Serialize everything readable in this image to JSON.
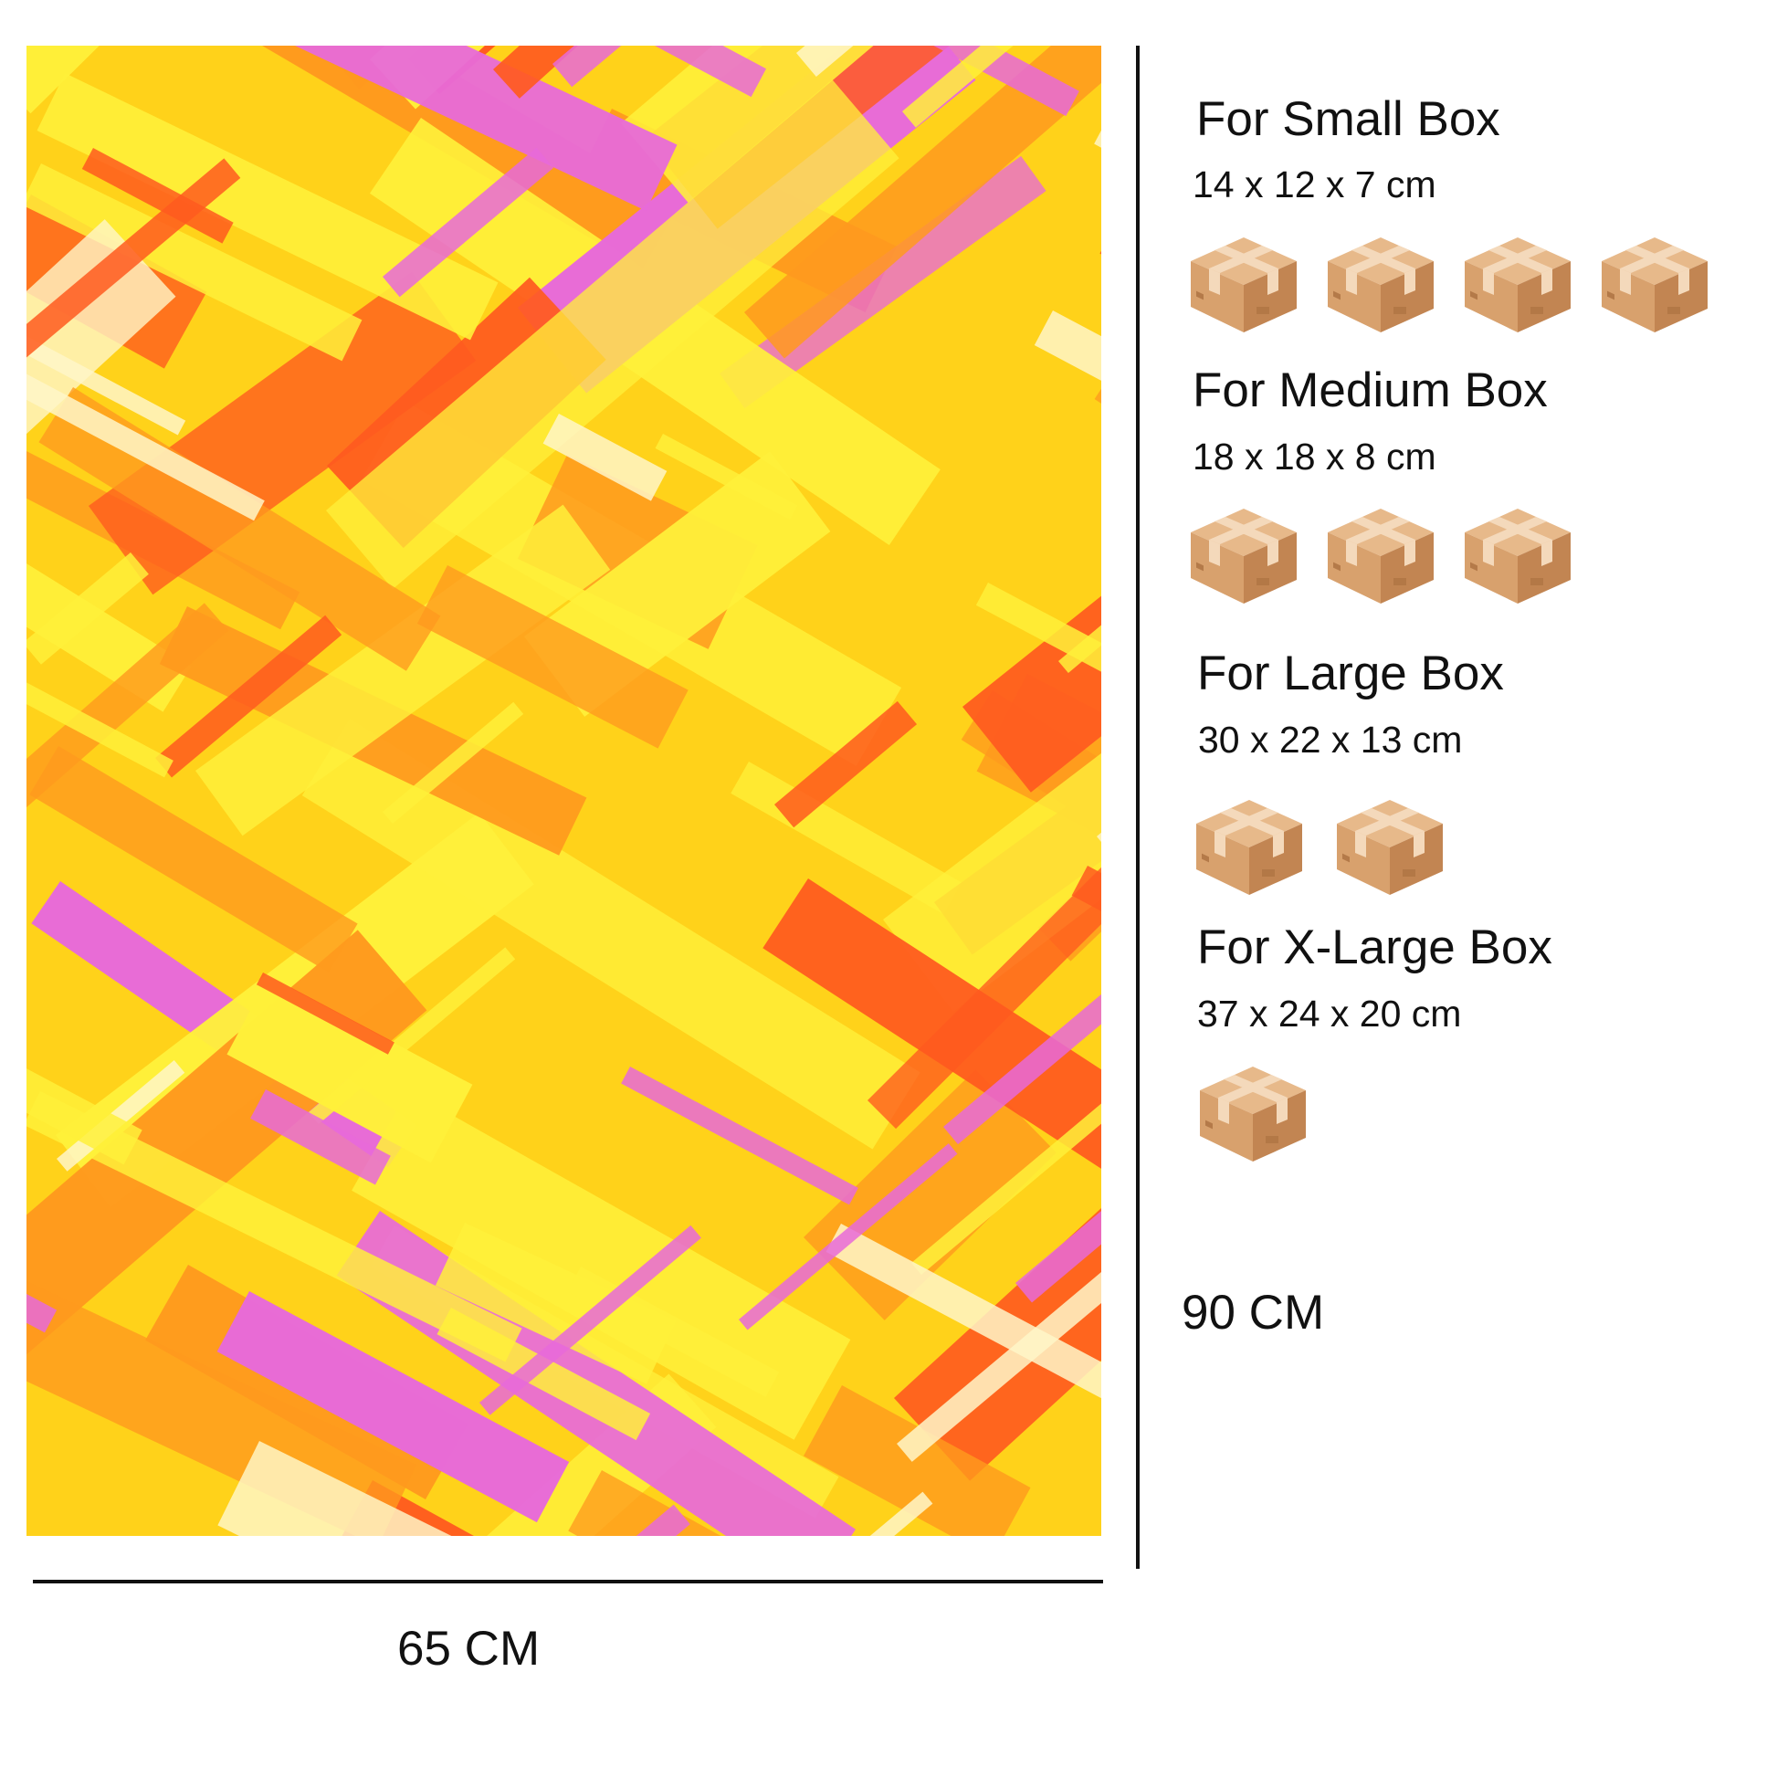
{
  "paper": {
    "colors": {
      "base": "#ffd21a",
      "yellow": "#fff03a",
      "orange": "#ff9a1e",
      "red_orange": "#ff5a1f",
      "pink": "#e86ad9",
      "cream": "#fff6c8"
    }
  },
  "dimensions": {
    "width_label": "65 CM",
    "height_label": "90 CM"
  },
  "sections": [
    {
      "title": "For Small Box",
      "size": "14 x 12 x 7 cm",
      "box_count": 4,
      "icon": "cardboard-box-icon"
    },
    {
      "title": "For Medium Box",
      "size": "18 x 18 x 8 cm",
      "box_count": 3,
      "icon": "cardboard-box-icon"
    },
    {
      "title": "For Large Box",
      "size": "30 x 22 x 13 cm",
      "box_count": 2,
      "icon": "cardboard-box-icon"
    },
    {
      "title": "For X-Large Box",
      "size": "37 x 24 x 20 cm",
      "box_count": 1,
      "icon": "cardboard-box-icon"
    }
  ],
  "box_colors": {
    "top": "#e7b98a",
    "left": "#d8a16d",
    "right": "#c28552",
    "tape": "#f4d9bb"
  }
}
